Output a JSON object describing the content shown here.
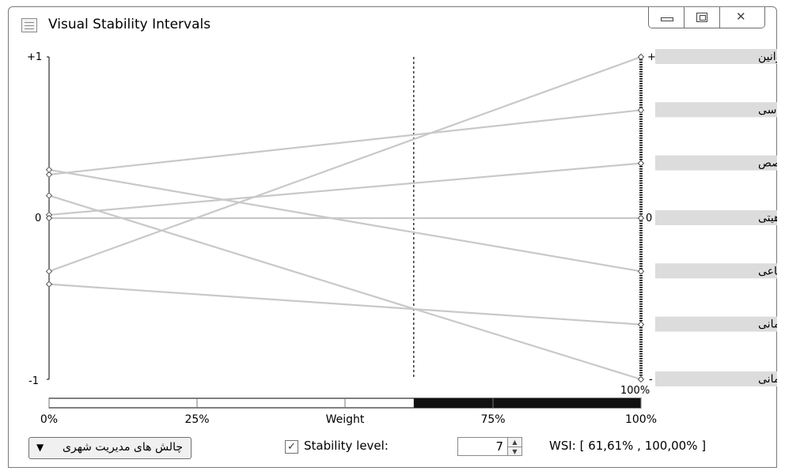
{
  "window": {
    "title": "Visual Stability Intervals",
    "controls": {
      "minimize": "minimize-icon",
      "maximize": "maximize-icon",
      "close": "close-icon"
    }
  },
  "chart_data": {
    "type": "line",
    "description": "parallel coordinates sensitivity plot",
    "left_axis": {
      "top_label": "+1",
      "zero_label": "0",
      "bottom_label": "-1",
      "range": [
        -1,
        1
      ]
    },
    "right_axis": {
      "top_label": "+",
      "zero_label": "0",
      "bottom_label": "-",
      "range": [
        -1,
        1
      ]
    },
    "criteria": [
      {
        "label": "ناکارآمدی قوانین",
        "right_value": 1.0,
        "left_value": -0.33
      },
      {
        "label": "تعارضات سیاسی",
        "right_value": 0.67,
        "left_value": 0.27
      },
      {
        "label": "انسانی متخصص",
        "right_value": 0.34,
        "left_value": 0.02
      },
      {
        "label": "تعارض ماهیتی",
        "right_value": 0.0,
        "left_value": 0.0
      },
      {
        "label": "ح زندگی اجتماعی",
        "right_value": -0.33,
        "left_value": 0.3
      },
      {
        "label": "ابط درون سازمانی",
        "right_value": -0.66,
        "left_value": -0.41
      },
      {
        "label": "وابط بین سازمانی",
        "right_value": -1.0,
        "left_value": 0.14
      }
    ],
    "weight_marker": 61.61,
    "weight_axis": {
      "ticks": [
        "0%",
        "25%",
        "Weight",
        "75%",
        "100%"
      ],
      "top_right_label": "100%",
      "stability_interval": [
        61.61,
        100.0
      ]
    },
    "colors": {
      "line": "#c8c8c8",
      "axis": "#000000",
      "bar_fill": "#111111"
    }
  },
  "controls": {
    "category_dropdown": "چالش های مدیریت شهری",
    "stability_checkbox_checked": true,
    "stability_label": "Stability level:",
    "stability_value": "7",
    "wsi_text": "WSI: [ 61,61% , 100,00% ]"
  }
}
